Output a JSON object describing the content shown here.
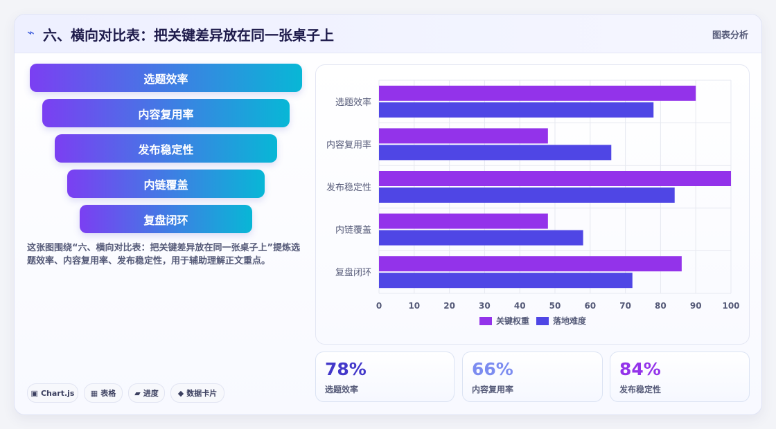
{
  "header": {
    "icon": "bolt-icon",
    "title": "六、横向对比表：把关键差异放在同一张桌子上",
    "badge": "图表分析"
  },
  "funnel": {
    "items": [
      "选题效率",
      "内容复用率",
      "发布稳定性",
      "内链覆盖",
      "复盘闭环"
    ],
    "colors": [
      "#7b3ff2",
      "#08b7d6"
    ]
  },
  "description": "这张图围绕“六、横向对比表：把关键差异放在同一张桌子上”提炼选题效率、内容复用率、发布稳定性，用于辅助理解正文重点。",
  "tags": [
    {
      "icon": "▣",
      "label": "Chart.js"
    },
    {
      "icon": "▦",
      "label": "表格"
    },
    {
      "icon": "▰",
      "label": "进度"
    },
    {
      "icon": "◆",
      "label": "数据卡片"
    }
  ],
  "chart_data": {
    "type": "bar",
    "orientation": "horizontal",
    "categories": [
      "选题效率",
      "内容复用率",
      "发布稳定性",
      "内链覆盖",
      "复盘闭环"
    ],
    "series": [
      {
        "name": "关键权重",
        "color": "#9333ea",
        "values": [
          90,
          48,
          100,
          48,
          86
        ]
      },
      {
        "name": "落地难度",
        "color": "#4f46e5",
        "values": [
          78,
          66,
          84,
          58,
          72
        ]
      }
    ],
    "xlim": [
      0,
      100
    ],
    "xticks": [
      0,
      10,
      20,
      30,
      40,
      50,
      60,
      70,
      80,
      90,
      100
    ],
    "grid": true,
    "legend": "bottom"
  },
  "stats": [
    {
      "value": "78%",
      "label": "选题效率",
      "color": "#4338ca"
    },
    {
      "value": "66%",
      "label": "内容复用率",
      "color": "#7c8cf0"
    },
    {
      "value": "84%",
      "label": "发布稳定性",
      "color": "#9333ea"
    }
  ]
}
